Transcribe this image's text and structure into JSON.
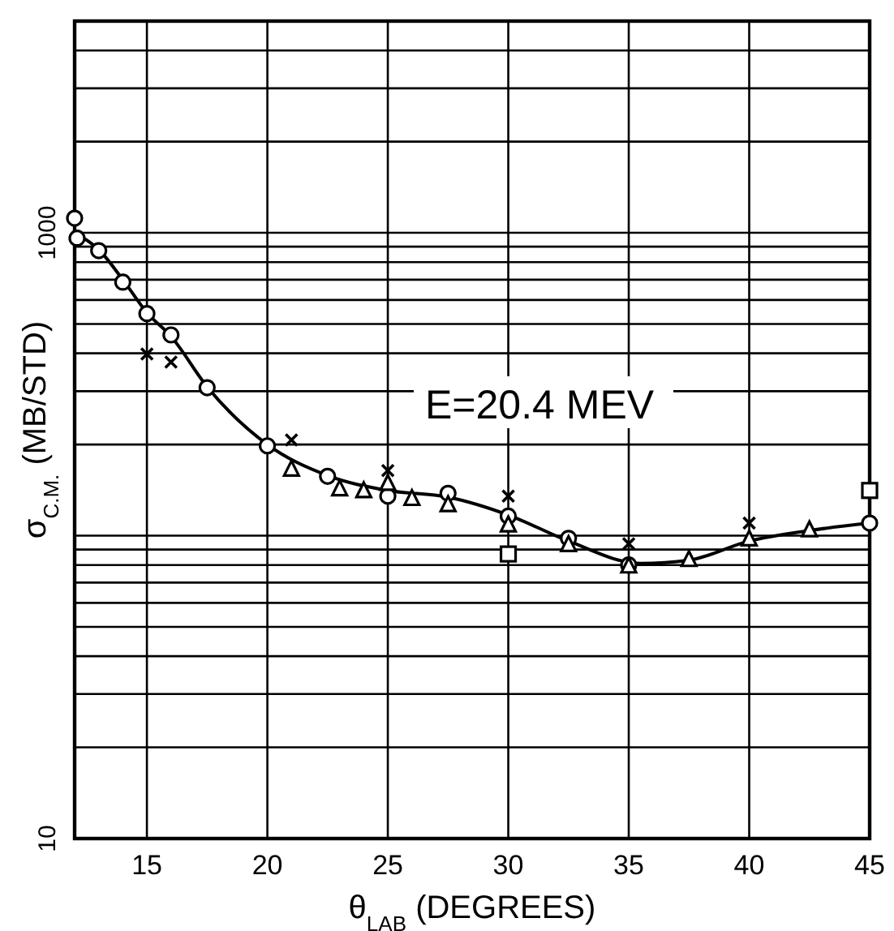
{
  "chart_data": {
    "type": "scatter",
    "xlabel": "θ$_{LAB}$ (DEGREES)",
    "ylabel": "σ$_{C.M.}$ (MB/STD)",
    "annotations": [
      "E=20.4 MEV"
    ],
    "xlim": [
      12,
      45
    ],
    "xticks": [
      15,
      20,
      25,
      30,
      35,
      40,
      45
    ],
    "ylim": [
      10,
      5000
    ],
    "log": true,
    "grid": true,
    "yticks": [
      10,
      {
        "value": 20,
        "label": null
      },
      {
        "value": 30,
        "label": null
      },
      {
        "value": 40,
        "label": null
      },
      {
        "value": 50,
        "label": null
      },
      {
        "value": 60,
        "label": null
      },
      {
        "value": 70,
        "label": null
      },
      {
        "value": 80,
        "label": null
      },
      {
        "value": 90,
        "label": null
      },
      {
        "value": 100,
        "label": null
      },
      {
        "value": 200,
        "label": null
      },
      {
        "value": 300,
        "label": null
      },
      {
        "value": 400,
        "label": null
      },
      {
        "value": 500,
        "label": null
      },
      {
        "value": 600,
        "label": null
      },
      {
        "value": 700,
        "label": null
      },
      {
        "value": 800,
        "label": null
      },
      {
        "value": 900,
        "label": null
      },
      1000,
      {
        "value": 2000,
        "label": null
      },
      {
        "value": 3000,
        "label": null
      },
      {
        "value": 4000,
        "label": null
      }
    ],
    "series": [
      {
        "type": "line",
        "color": "#000000",
        "marker": "none",
        "x": [
          12,
          13,
          14,
          15,
          16,
          17.5,
          20,
          22.5,
          25,
          27.5,
          30,
          32.5,
          35.5,
          37.5,
          40,
          42.5,
          45
        ],
        "values": [
          1000,
          880,
          700,
          545,
          455,
          310,
          200,
          158,
          141,
          134,
          117,
          96,
          81,
          83,
          96,
          104,
          110
        ]
      },
      {
        "color": "#000000",
        "marker": "circle",
        "x": [
          12,
          12.1,
          13,
          14,
          15,
          16,
          17.5,
          20,
          22.5,
          25,
          27.5,
          30,
          32.5,
          35,
          45
        ],
        "values": [
          1117,
          960,
          873,
          687,
          541,
          460,
          308,
          198,
          157,
          135,
          138,
          116,
          98,
          80,
          110
        ]
      },
      {
        "color": "#000000",
        "marker": "cross",
        "x": [
          15,
          16,
          21,
          25,
          30,
          35,
          40
        ],
        "values": [
          398,
          374,
          207,
          164,
          135,
          94,
          110
        ]
      },
      {
        "color": "#000000",
        "marker": "triangle",
        "x": [
          21,
          23,
          24,
          25,
          26,
          27.5,
          30,
          32.5,
          35,
          37.5,
          40,
          42.5
        ],
        "values": [
          165,
          142,
          140,
          148,
          132,
          126,
          108,
          93,
          79,
          83,
          97,
          104
        ]
      },
      {
        "color": "#000000",
        "marker": "square",
        "x": [
          30,
          45
        ],
        "values": [
          87,
          141
        ]
      }
    ]
  }
}
